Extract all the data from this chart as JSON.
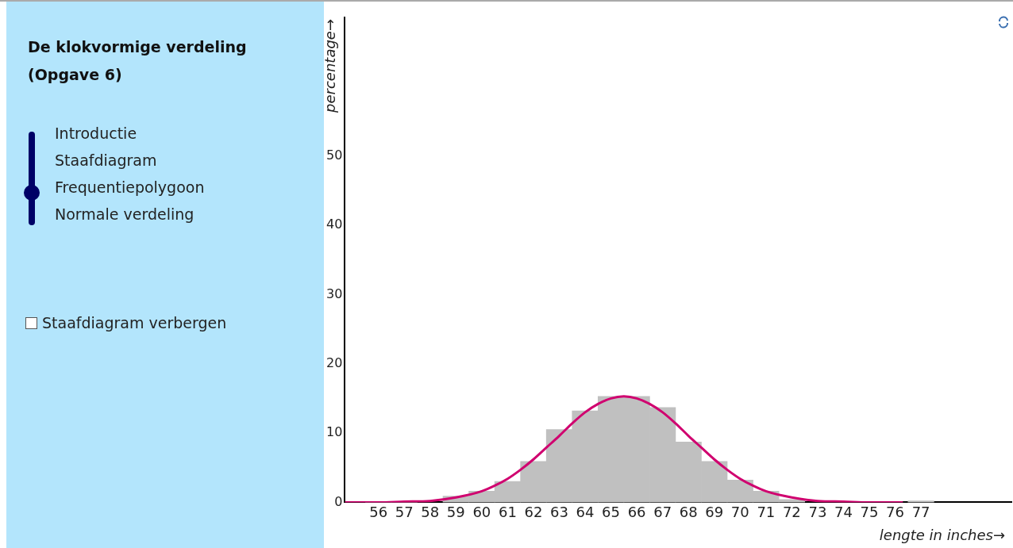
{
  "chart_data": {
    "type": "histogram",
    "title": "De klokvormige verdeling (Opgave 6)",
    "xlabel": "lengte in inches→",
    "ylabel": "percentage→",
    "annotations": [
      "Introductie",
      "Staafdiagram",
      "Frequentiepolygoon",
      "Normale verdeling",
      "Staafdiagram verbergen"
    ],
    "bins": [
      55.5,
      56.5,
      57.5,
      58.5,
      59.5,
      60.5,
      61.5,
      62.5,
      63.5,
      64.5,
      65.5,
      66.5,
      67.5,
      68.5,
      69.5,
      70.5,
      71.5,
      72.5,
      73.5,
      74.5,
      75.5,
      76.5,
      77.5
    ],
    "values": [
      0,
      0,
      null,
      0.9,
      1.6,
      3.0,
      5.9,
      10.5,
      13.2,
      15.3,
      15.3,
      13.7,
      8.7,
      5.9,
      3.2,
      1.6,
      0.4,
      null,
      null,
      null,
      null,
      0.2
    ],
    "color": "#c0c0c0",
    "series": [
      {
        "type": "line",
        "color": "#d0006f",
        "x": [
          54.7,
          56,
          57,
          58,
          59,
          60,
          60.5,
          61,
          61.5,
          62,
          62.5,
          63,
          63.5,
          64,
          64.5,
          65,
          65.5,
          66,
          66.5,
          67,
          67.5,
          68,
          68.5,
          69,
          69.5,
          70,
          70.5,
          71,
          72,
          73,
          74,
          75,
          76.3
        ],
        "values": [
          0,
          0,
          0.1,
          0.2,
          0.7,
          1.6,
          2.4,
          3.4,
          4.7,
          6.2,
          7.9,
          9.6,
          11.4,
          13.0,
          14.2,
          15.0,
          15.3,
          15.0,
          14.2,
          13.0,
          11.4,
          9.6,
          7.9,
          6.2,
          4.7,
          3.4,
          2.4,
          1.6,
          0.7,
          0.2,
          0.1,
          0,
          0
        ]
      }
    ],
    "xlim": [
      54.7,
      80.5
    ],
    "xticks": [
      56,
      57,
      58,
      59,
      60,
      61,
      62,
      63,
      64,
      65,
      66,
      67,
      68,
      69,
      70,
      71,
      72,
      73,
      74,
      75,
      76,
      77
    ],
    "ylim": [
      0,
      70
    ],
    "yticks": [
      0,
      10,
      20,
      30,
      40,
      50
    ],
    "grid": false,
    "legend": false,
    "marker": "none"
  }
}
